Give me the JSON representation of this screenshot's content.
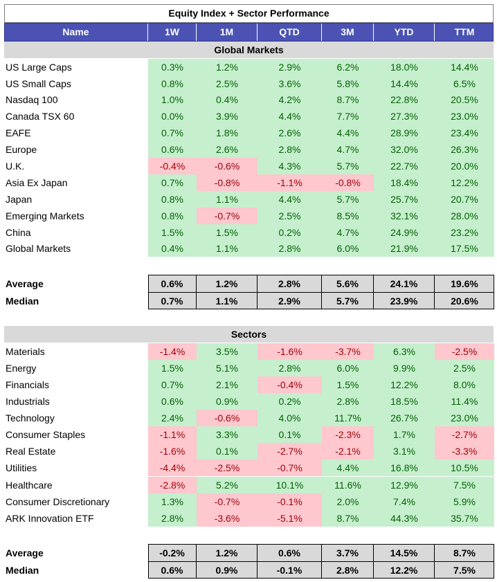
{
  "title": "Equity Index + Sector Performance",
  "columns": [
    "Name",
    "1W",
    "1M",
    "QTD",
    "3M",
    "YTD",
    "TTM"
  ],
  "sections": [
    {
      "heading": "Global Markets",
      "rows": [
        {
          "name": "US Large Caps",
          "values": [
            "0.3%",
            "1.2%",
            "2.9%",
            "6.2%",
            "18.0%",
            "14.4%"
          ]
        },
        {
          "name": "US Small Caps",
          "values": [
            "0.8%",
            "2.5%",
            "3.6%",
            "5.8%",
            "14.4%",
            "6.5%"
          ]
        },
        {
          "name": "Nasdaq 100",
          "values": [
            "1.0%",
            "0.4%",
            "4.2%",
            "8.7%",
            "22.8%",
            "20.5%"
          ]
        },
        {
          "name": "Canada TSX 60",
          "values": [
            "0.0%",
            "3.9%",
            "4.4%",
            "7.7%",
            "27.3%",
            "23.0%"
          ]
        },
        {
          "name": "EAFE",
          "values": [
            "0.7%",
            "1.8%",
            "2.6%",
            "4.4%",
            "28.9%",
            "23.4%"
          ]
        },
        {
          "name": "Europe",
          "values": [
            "0.6%",
            "2.6%",
            "2.8%",
            "4.7%",
            "32.0%",
            "26.3%"
          ]
        },
        {
          "name": "U.K.",
          "values": [
            "-0.4%",
            "-0.6%",
            "4.3%",
            "5.7%",
            "22.7%",
            "20.0%"
          ]
        },
        {
          "name": "Asia Ex Japan",
          "values": [
            "0.7%",
            "-0.8%",
            "-1.1%",
            "-0.8%",
            "18.4%",
            "12.2%"
          ]
        },
        {
          "name": "Japan",
          "values": [
            "0.8%",
            "1.1%",
            "4.4%",
            "5.7%",
            "25.7%",
            "20.7%"
          ]
        },
        {
          "name": "Emerging Markets",
          "values": [
            "0.8%",
            "-0.7%",
            "2.5%",
            "8.5%",
            "32.1%",
            "28.0%"
          ]
        },
        {
          "name": "China",
          "values": [
            "1.5%",
            "1.5%",
            "0.2%",
            "4.7%",
            "24.9%",
            "23.2%"
          ]
        },
        {
          "name": "Global Markets",
          "values": [
            "0.4%",
            "1.1%",
            "2.8%",
            "6.0%",
            "21.9%",
            "17.5%"
          ]
        }
      ],
      "stats": [
        {
          "label": "Average",
          "values": [
            "0.6%",
            "1.2%",
            "2.8%",
            "5.6%",
            "24.1%",
            "19.6%"
          ]
        },
        {
          "label": "Median",
          "values": [
            "0.7%",
            "1.1%",
            "2.9%",
            "5.7%",
            "23.9%",
            "20.6%"
          ]
        }
      ]
    },
    {
      "heading": "Sectors",
      "rows": [
        {
          "name": "Materials",
          "values": [
            "-1.4%",
            "3.5%",
            "-1.6%",
            "-3.7%",
            "6.3%",
            "-2.5%"
          ]
        },
        {
          "name": "Energy",
          "values": [
            "1.5%",
            "5.1%",
            "2.8%",
            "6.0%",
            "9.9%",
            "2.5%"
          ]
        },
        {
          "name": "Financials",
          "values": [
            "0.7%",
            "2.1%",
            "-0.4%",
            "1.5%",
            "12.2%",
            "8.0%"
          ]
        },
        {
          "name": "Industrials",
          "values": [
            "0.6%",
            "0.9%",
            "0.2%",
            "2.8%",
            "18.5%",
            "11.4%"
          ]
        },
        {
          "name": "Technology",
          "values": [
            "2.4%",
            "-0.6%",
            "4.0%",
            "11.7%",
            "26.7%",
            "23.0%"
          ]
        },
        {
          "name": "Consumer Staples",
          "values": [
            "-1.1%",
            "3.3%",
            "0.1%",
            "-2.3%",
            "1.7%",
            "-2.7%"
          ]
        },
        {
          "name": "Real Estate",
          "values": [
            "-1.6%",
            "0.1%",
            "-2.7%",
            "-2.1%",
            "3.1%",
            "-3.3%"
          ]
        },
        {
          "name": "Utilities",
          "values": [
            "-4.4%",
            "-2.5%",
            "-0.7%",
            "4.4%",
            "16.8%",
            "10.5%"
          ]
        },
        {
          "name": "Healthcare",
          "values": [
            "-2.8%",
            "5.2%",
            "10.1%",
            "11.6%",
            "12.9%",
            "7.5%"
          ]
        },
        {
          "name": "Consumer Discretionary",
          "values": [
            "1.3%",
            "-0.7%",
            "-0.1%",
            "2.0%",
            "7.4%",
            "5.9%"
          ]
        },
        {
          "name": "ARK Innovation ETF",
          "values": [
            "2.8%",
            "-3.6%",
            "-5.1%",
            "8.7%",
            "44.3%",
            "35.7%"
          ]
        }
      ],
      "stats": [
        {
          "label": "Average",
          "values": [
            "-0.2%",
            "1.2%",
            "0.6%",
            "3.7%",
            "14.5%",
            "8.7%"
          ]
        },
        {
          "label": "Median",
          "values": [
            "0.6%",
            "0.9%",
            "-0.1%",
            "2.8%",
            "12.2%",
            "7.5%"
          ]
        }
      ]
    }
  ],
  "colors": {
    "header_bg": "#4b52b4",
    "positive_bg": "#c6efce",
    "negative_bg": "#ffc7ce",
    "section_bg": "#d9d9d9"
  }
}
